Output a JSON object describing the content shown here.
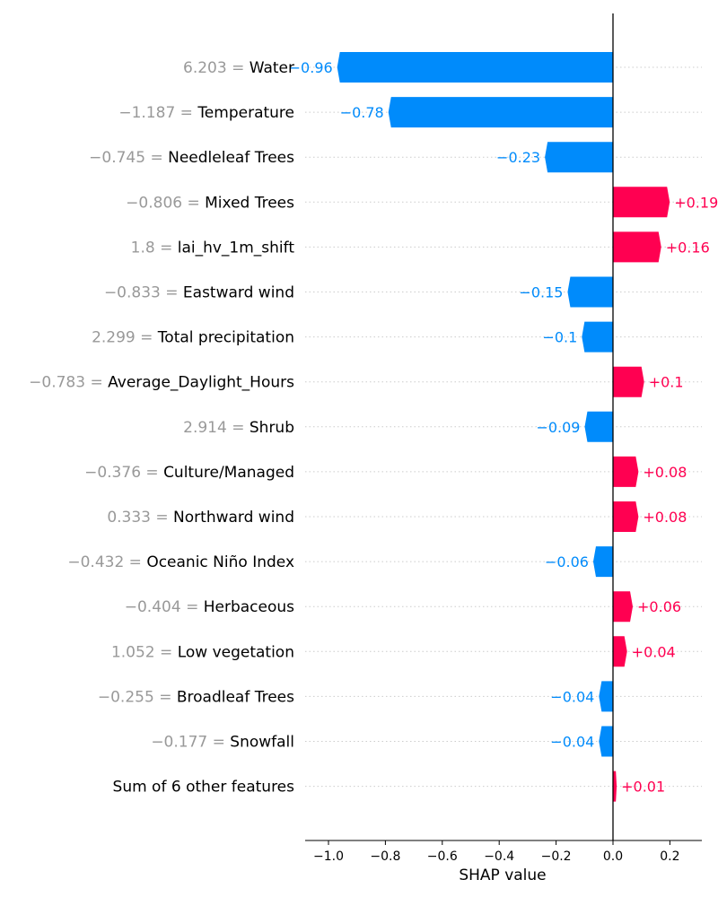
{
  "chart_data": {
    "type": "bar",
    "xlabel": "SHAP value",
    "xlim": [
      -1.08,
      0.31
    ],
    "xticks": [
      -1.0,
      -0.8,
      -0.6,
      -0.4,
      -0.2,
      0.0,
      0.2
    ],
    "xtick_labels": [
      "−1.0",
      "−0.8",
      "−0.6",
      "−0.4",
      "−0.2",
      "0.0",
      "0.2"
    ],
    "colors": {
      "positive": "#ff0051",
      "negative": "#008bfb",
      "feature_value": "#999999",
      "grid": "#cccccc"
    },
    "features": [
      {
        "value": "6.203",
        "name": "Water",
        "shap": -0.96,
        "label": "−0.96"
      },
      {
        "value": "−1.187",
        "name": "Temperature",
        "shap": -0.78,
        "label": "−0.78"
      },
      {
        "value": "−0.745",
        "name": "Needleleaf Trees",
        "shap": -0.23,
        "label": "−0.23"
      },
      {
        "value": "−0.806",
        "name": "Mixed Trees",
        "shap": 0.19,
        "label": "+0.19"
      },
      {
        "value": "1.8",
        "name": "lai_hv_1m_shift",
        "shap": 0.16,
        "label": "+0.16"
      },
      {
        "value": "−0.833",
        "name": "Eastward wind",
        "shap": -0.15,
        "label": "−0.15"
      },
      {
        "value": "2.299",
        "name": "Total precipitation",
        "shap": -0.1,
        "label": "−0.1"
      },
      {
        "value": "−0.783",
        "name": "Average_Daylight_Hours",
        "shap": 0.1,
        "label": "+0.1"
      },
      {
        "value": "2.914",
        "name": "Shrub",
        "shap": -0.09,
        "label": "−0.09"
      },
      {
        "value": "−0.376",
        "name": "Culture/Managed",
        "shap": 0.08,
        "label": "+0.08"
      },
      {
        "value": "0.333",
        "name": "Northward wind",
        "shap": 0.08,
        "label": "+0.08"
      },
      {
        "value": "−0.432",
        "name": "Oceanic Niño Index",
        "shap": -0.06,
        "label": "−0.06"
      },
      {
        "value": "−0.404",
        "name": "Herbaceous",
        "shap": 0.06,
        "label": "+0.06"
      },
      {
        "value": "1.052",
        "name": "Low vegetation",
        "shap": 0.04,
        "label": "+0.04"
      },
      {
        "value": "−0.255",
        "name": "Broadleaf Trees",
        "shap": -0.04,
        "label": "−0.04"
      },
      {
        "value": "−0.177",
        "name": "Snowfall",
        "shap": -0.04,
        "label": "−0.04"
      },
      {
        "value": "",
        "name": "Sum of 6 other features",
        "shap": 0.01,
        "label": "+0.01"
      }
    ]
  }
}
